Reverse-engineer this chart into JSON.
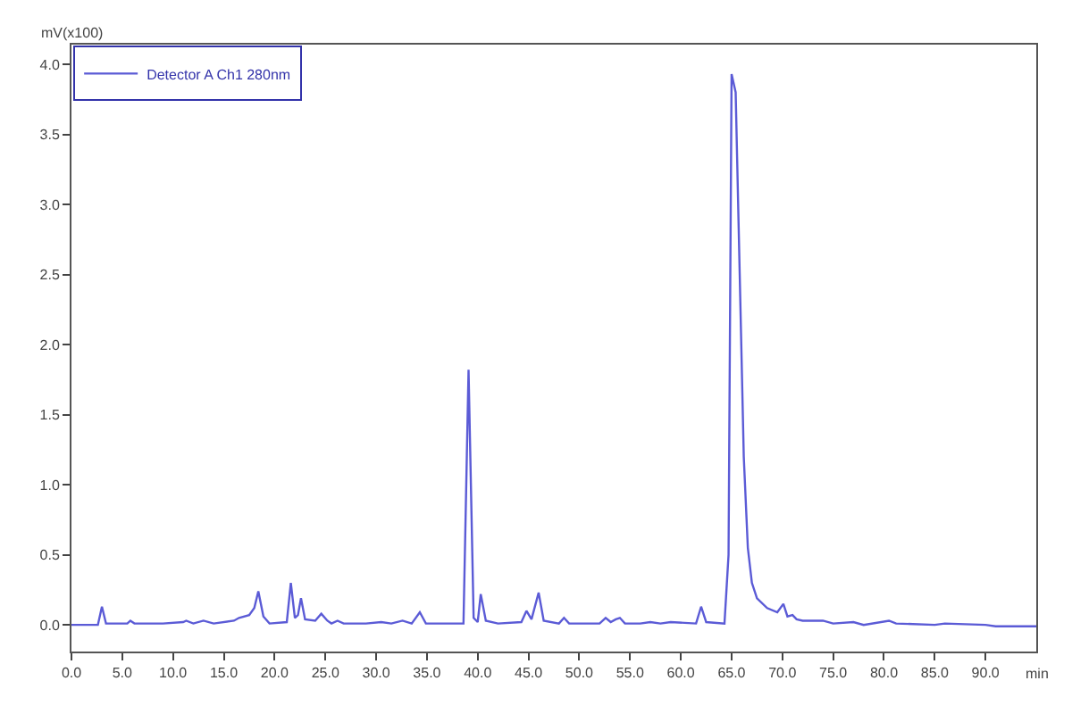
{
  "chart_data": {
    "type": "line",
    "ylabel": "mV(x100)",
    "xlabel": "min",
    "x": [
      0,
      2.6,
      3.0,
      3.4,
      5.5,
      5.8,
      6.2,
      9,
      11,
      11.3,
      12,
      13,
      14,
      16,
      16.5,
      17.5,
      18.0,
      18.4,
      18.9,
      19.5,
      21.2,
      21.6,
      22.0,
      22.3,
      22.6,
      23.0,
      24.0,
      24.6,
      25.2,
      25.6,
      26.2,
      26.8,
      29,
      30.5,
      31.5,
      32.6,
      33.5,
      34.3,
      34.9,
      38.6,
      39.1,
      39.6,
      40.0,
      40.3,
      40.8,
      42,
      44.3,
      44.8,
      45.3,
      46.0,
      46.5,
      48.0,
      48.5,
      49.0,
      52.0,
      52.6,
      53.1,
      53.6,
      54.0,
      54.5,
      56,
      57,
      58,
      59,
      61.5,
      62.0,
      62.5,
      64.3,
      64.7,
      65.0,
      65.4,
      65.8,
      66.2,
      66.6,
      67,
      67.5,
      68.5,
      69.5,
      70.1,
      70.5,
      71.0,
      71.4,
      72,
      74,
      75,
      77,
      78,
      80.5,
      81.2,
      85,
      86,
      90,
      91,
      95
    ],
    "series": [
      {
        "name": "Detector A Ch1 280nm",
        "color": "#5b5bd6",
        "values": [
          0.0,
          0.0,
          0.13,
          0.01,
          0.01,
          0.03,
          0.01,
          0.01,
          0.02,
          0.03,
          0.01,
          0.03,
          0.01,
          0.03,
          0.05,
          0.07,
          0.12,
          0.24,
          0.06,
          0.01,
          0.02,
          0.3,
          0.05,
          0.07,
          0.19,
          0.04,
          0.03,
          0.08,
          0.03,
          0.01,
          0.03,
          0.01,
          0.01,
          0.02,
          0.01,
          0.03,
          0.01,
          0.09,
          0.01,
          0.01,
          1.82,
          0.05,
          0.02,
          0.22,
          0.03,
          0.01,
          0.02,
          0.1,
          0.04,
          0.23,
          0.03,
          0.01,
          0.05,
          0.01,
          0.01,
          0.05,
          0.02,
          0.04,
          0.05,
          0.01,
          0.01,
          0.02,
          0.01,
          0.02,
          0.01,
          0.13,
          0.02,
          0.01,
          0.5,
          3.93,
          3.8,
          2.5,
          1.2,
          0.55,
          0.3,
          0.19,
          0.12,
          0.09,
          0.15,
          0.06,
          0.07,
          0.04,
          0.03,
          0.03,
          0.01,
          0.02,
          0.0,
          0.03,
          0.01,
          0.0,
          0.01,
          0.0,
          -0.01,
          -0.01
        ]
      }
    ],
    "xlim": [
      0,
      95
    ],
    "ylim": [
      -0.19,
      4.14
    ],
    "xticks": [
      {
        "value": 0,
        "label": "0.0"
      },
      {
        "value": 5,
        "label": "5.0"
      },
      {
        "value": 10,
        "label": "10.0"
      },
      {
        "value": 15,
        "label": "15.0"
      },
      {
        "value": 20,
        "label": "20.0"
      },
      {
        "value": 25,
        "label": "25.0"
      },
      {
        "value": 30,
        "label": "30.0"
      },
      {
        "value": 35,
        "label": "35.0"
      },
      {
        "value": 40,
        "label": "40.0"
      },
      {
        "value": 45,
        "label": "45.0"
      },
      {
        "value": 50,
        "label": "50.0"
      },
      {
        "value": 55,
        "label": "55.0"
      },
      {
        "value": 60,
        "label": "60.0"
      },
      {
        "value": 65,
        "label": "65.0"
      },
      {
        "value": 70,
        "label": "70.0"
      },
      {
        "value": 75,
        "label": "75.0"
      },
      {
        "value": 80,
        "label": "80.0"
      },
      {
        "value": 85,
        "label": "85.0"
      },
      {
        "value": 90,
        "label": "90.0"
      }
    ],
    "yticks": [
      {
        "value": 0,
        "label": "0.0"
      },
      {
        "value": 0.5,
        "label": "0.5"
      },
      {
        "value": 1,
        "label": "1.0"
      },
      {
        "value": 1.5,
        "label": "1.5"
      },
      {
        "value": 2,
        "label": "2.0"
      },
      {
        "value": 2.5,
        "label": "2.5"
      },
      {
        "value": 3,
        "label": "3.0"
      },
      {
        "value": 3.5,
        "label": "3.5"
      },
      {
        "value": 4,
        "label": "4.0"
      }
    ],
    "legend": "top left",
    "marker": "none",
    "line_style": "solid"
  }
}
